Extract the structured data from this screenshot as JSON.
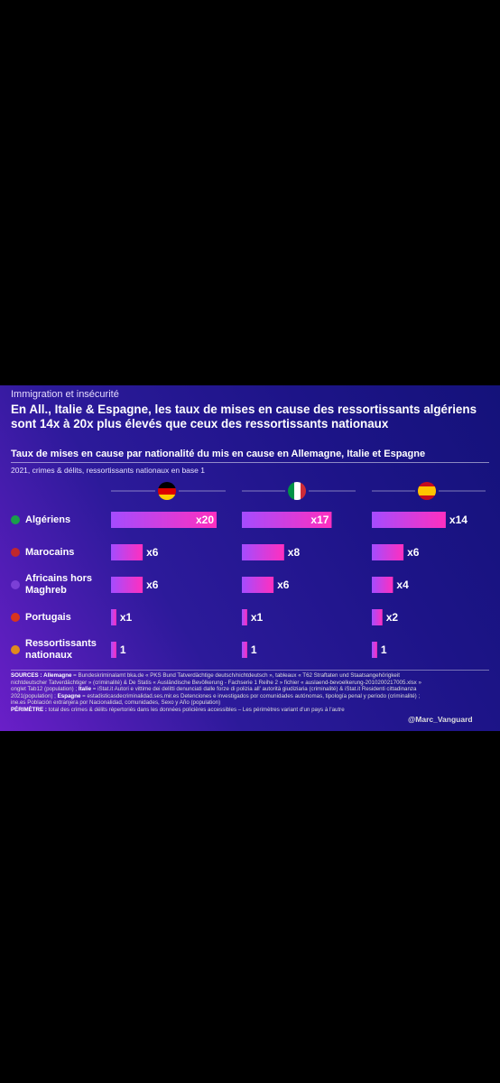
{
  "kicker": "Immigration et insécurité",
  "chart_data": {
    "type": "bar",
    "title": "En All., Italie & Espagne, les taux de mises en cause des ressortissants algériens sont 14x à 20x plus élevés que ceux des ressortissants nationaux",
    "subtitle": "Taux de mises en cause par nationalité du mis en cause en Allemagne, Italie et Espagne",
    "note": "2021, crimes & délits, ressortissants nationaux en base 1",
    "categories": [
      "Algériens",
      "Marocains",
      "Africains hors Maghreb",
      "Portugais",
      "Ressortissants nationaux"
    ],
    "series": [
      {
        "color": "#ff2fbf",
        "values": [
          20,
          6,
          6,
          1,
          1
        ],
        "value_labels": [
          "x20",
          "x6",
          "x6",
          "x1",
          "1"
        ]
      },
      {
        "color": "#ff2fbf",
        "values": [
          17,
          8,
          6,
          1,
          1
        ],
        "value_labels": [
          "x17",
          "x8",
          "x6",
          "x1",
          "1"
        ]
      },
      {
        "color": "#ff2fbf",
        "values": [
          14,
          6,
          4,
          2,
          1
        ],
        "value_labels": [
          "x14",
          "x6",
          "x4",
          "x2",
          "1"
        ]
      }
    ]
  },
  "sources": {
    "label": "SOURCES :",
    "items": [
      {
        "country": "Allemagne",
        "text": "= Bundeskriminalamt bka.de « PKS Bund Tatverdächtige deutsch/nichtdeutsch », tableaux « T62 Straftaten und Staatsangehörigkeit nichtdeutscher Tatverdächtiger » (criminalité) & De Statis « Ausländische Bevölkerung - Fachserie 1 Reihe 2 » fichier « auslaend-bevoelkerung-2010200217005.xlsx » onglet Tab12 (population) ;"
      },
      {
        "country": "Italie",
        "text": "= iStat.it Autori e vittime dei delitti denunciati dalle forze di polizia all' autorità giudiziaria (criminalité) & iStat.it Residenti cittadinanza 2021(population) ;"
      },
      {
        "country": "Espagne",
        "text": "= estadisticasdecriminalidad.ses.mir.es Detenciones e investigados por comunidades autónomas, tipología penal y periodo (criminalité) ; ine.es Población extranjera por Nacionalidad, comunidades, Sexo y Año (population)"
      }
    ]
  },
  "perimeter": {
    "label": "PÉRIMÈTRE :",
    "text": "total des crimes & délits répertoriés dans les données policières accessibles – Les périmètres variant d'un pays à l'autre"
  },
  "credit": "@Marc_Vanguard"
}
